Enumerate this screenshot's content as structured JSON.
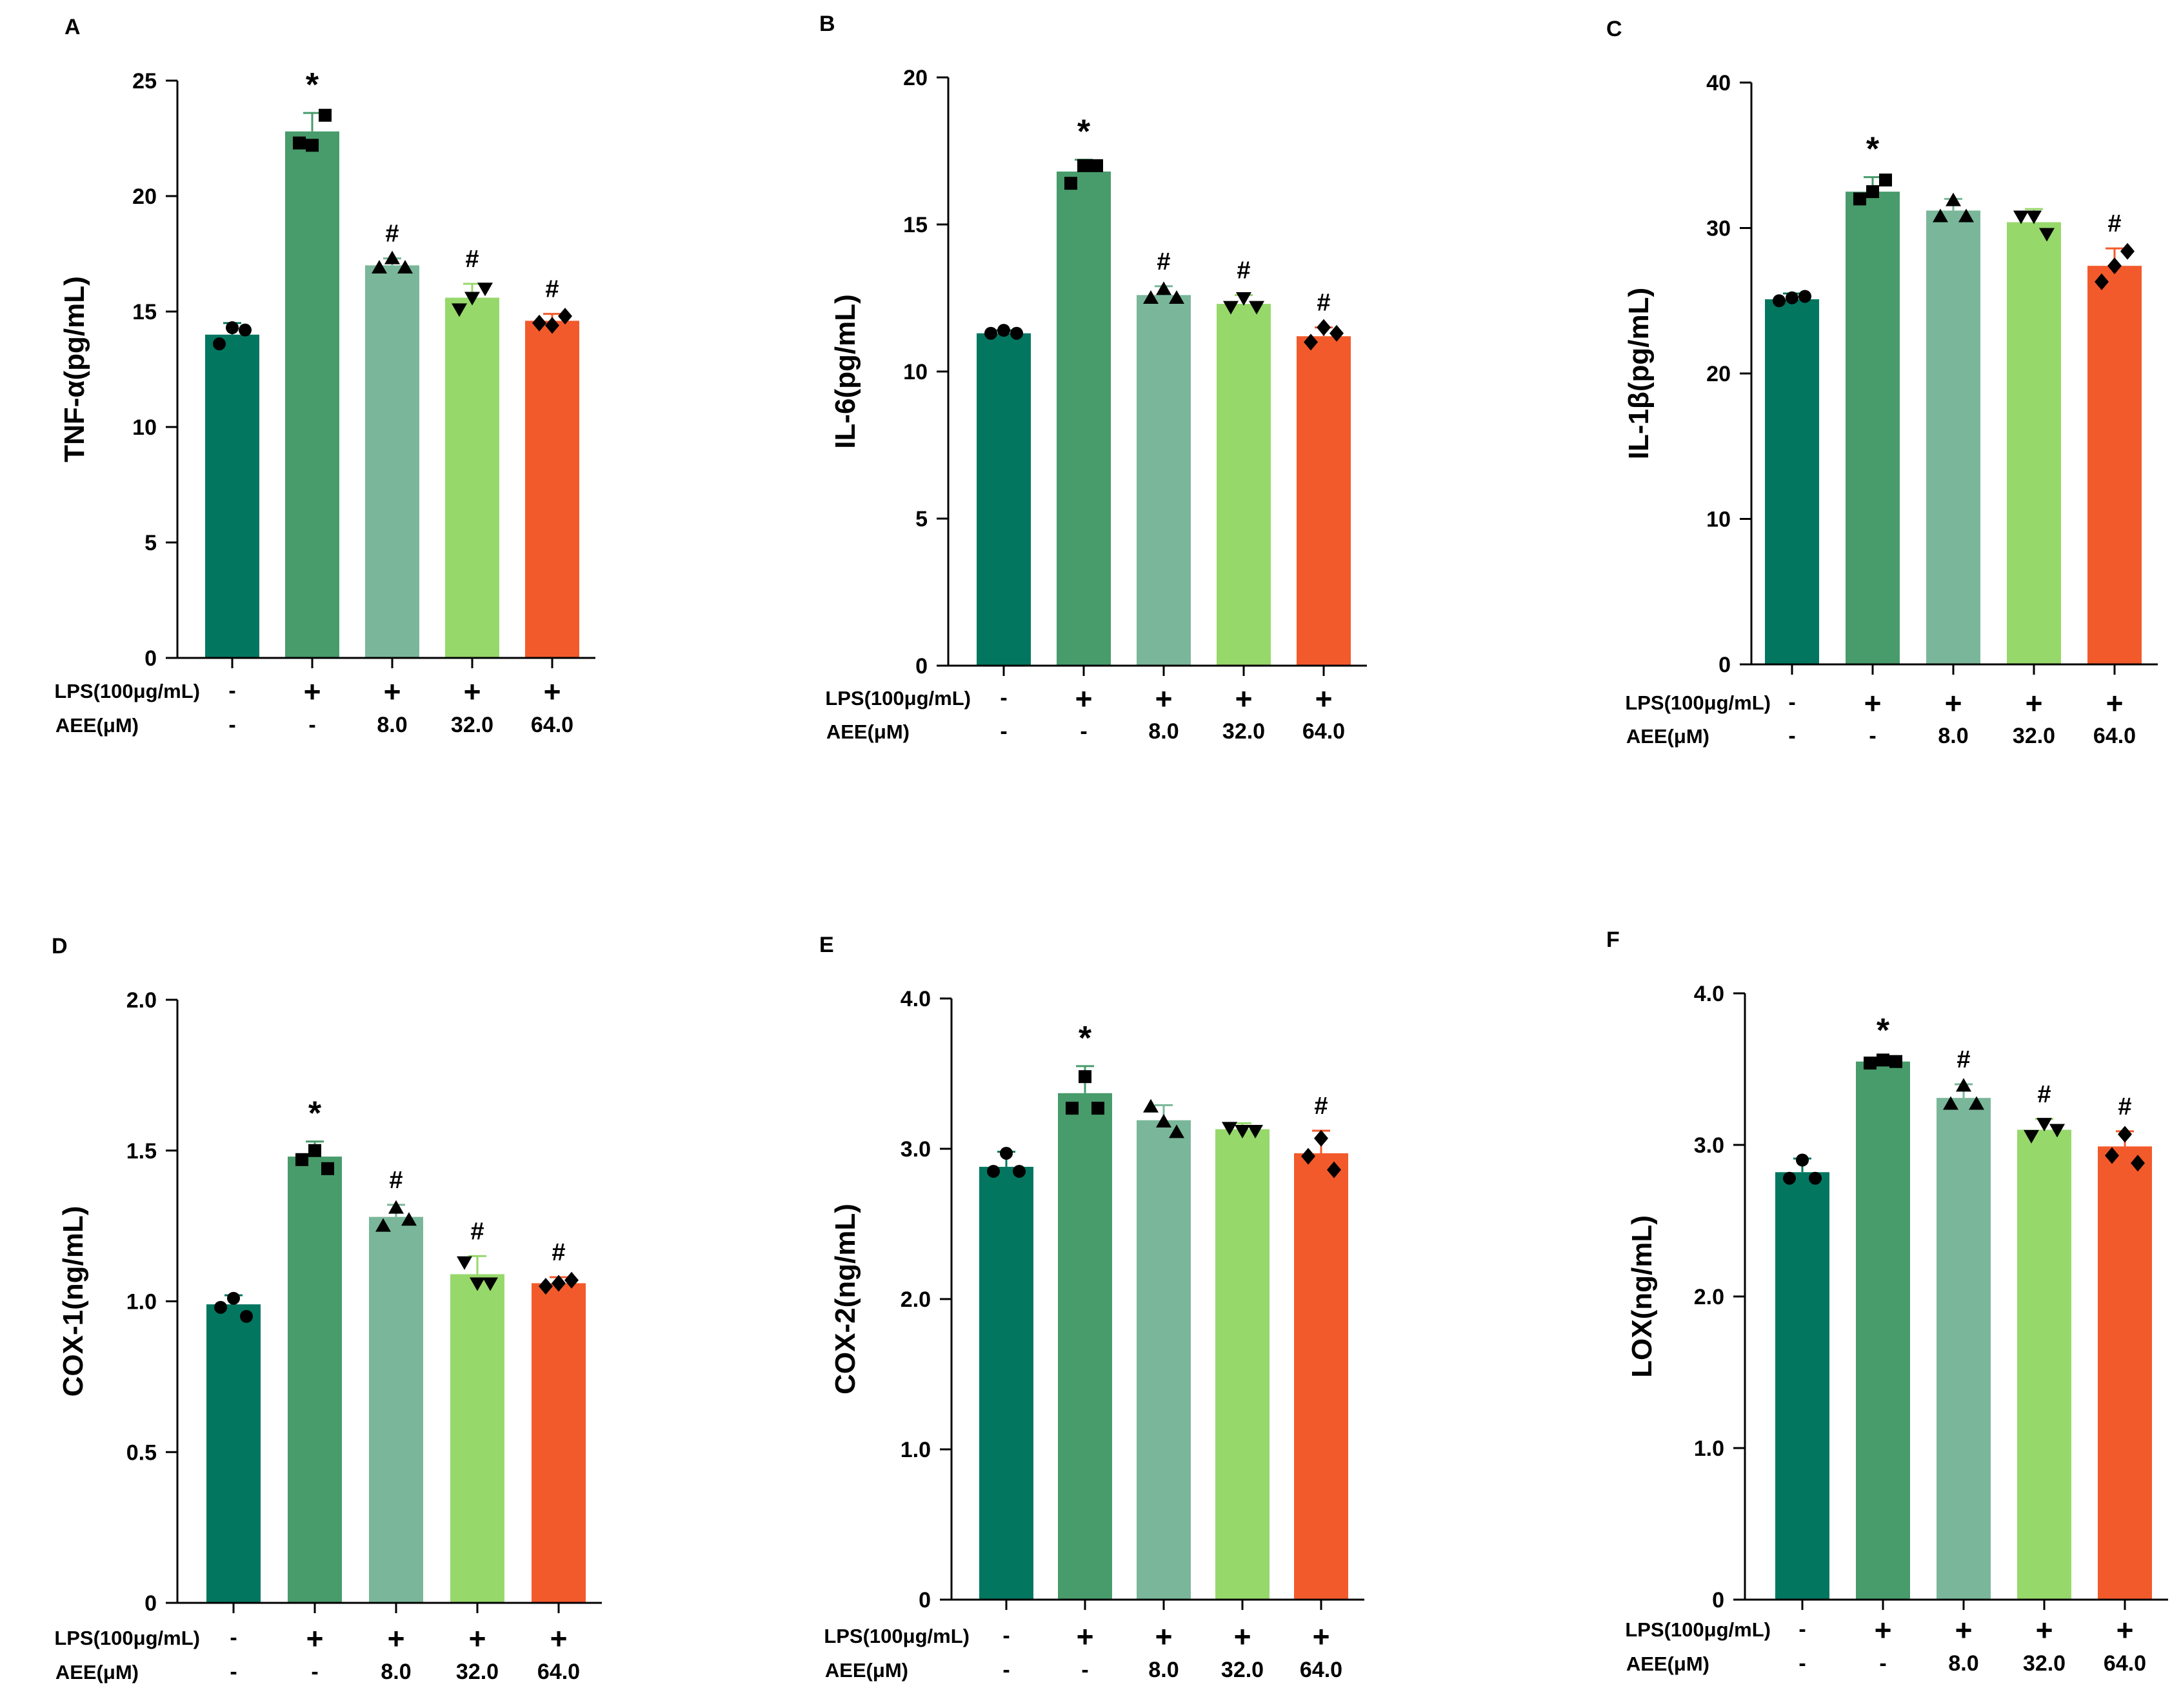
{
  "colors": [
    "#037660",
    "#489b6b",
    "#7ab79a",
    "#97d86b",
    "#f35a2b"
  ],
  "conditions": {
    "lps_label": "LPS(100μg/mL)",
    "aee_label": "AEE(μM)",
    "lps": [
      "-",
      "+",
      "+",
      "+",
      "+"
    ],
    "aee": [
      "-",
      "-",
      "8.0",
      "32.0",
      "64.0"
    ]
  },
  "chart_data": [
    {
      "panel": "A",
      "type": "bar",
      "ylabel": "TNF-α(pg/mL)",
      "ylim": [
        0,
        25
      ],
      "yticks": [
        0,
        5,
        10,
        15,
        20,
        25
      ],
      "yticklabels": [
        "0",
        "5",
        "10",
        "15",
        "20",
        "25"
      ],
      "values": [
        14.0,
        22.8,
        17.0,
        15.6,
        14.6
      ],
      "errors": [
        0.5,
        0.8,
        0.3,
        0.6,
        0.3
      ],
      "points": [
        [
          13.6,
          14.3,
          14.2
        ],
        [
          22.3,
          22.2,
          23.5
        ],
        [
          16.9,
          17.3,
          16.9
        ],
        [
          15.1,
          15.6,
          16.0
        ],
        [
          14.5,
          14.4,
          14.8
        ]
      ],
      "annotations": [
        "",
        "*",
        "#",
        "#",
        "#"
      ]
    },
    {
      "panel": "B",
      "type": "bar",
      "ylabel": "IL-6(pg/mL)",
      "ylim": [
        0,
        20
      ],
      "yticks": [
        0,
        5,
        10,
        15,
        20
      ],
      "yticklabels": [
        "0",
        "5",
        "10",
        "15",
        "20"
      ],
      "values": [
        11.3,
        16.8,
        12.6,
        12.3,
        11.2
      ],
      "errors": [
        0.1,
        0.4,
        0.3,
        0.3,
        0.3
      ],
      "points": [
        [
          11.3,
          11.4,
          11.3
        ],
        [
          16.4,
          17.0,
          17.0
        ],
        [
          12.5,
          12.8,
          12.5
        ],
        [
          12.2,
          12.5,
          12.2
        ],
        [
          11.0,
          11.5,
          11.3
        ]
      ],
      "annotations": [
        "",
        "*",
        "#",
        "#",
        "#"
      ]
    },
    {
      "panel": "C",
      "type": "bar",
      "ylabel": "IL-1β(pg/mL)",
      "ylim": [
        0,
        40
      ],
      "yticks": [
        0,
        10,
        20,
        30,
        40
      ],
      "yticklabels": [
        "0",
        "10",
        "20",
        "30",
        "40"
      ],
      "values": [
        25.1,
        32.5,
        31.2,
        30.4,
        27.4
      ],
      "errors": [
        0.4,
        1.0,
        0.8,
        0.9,
        1.2
      ],
      "points": [
        [
          25.0,
          25.2,
          25.3
        ],
        [
          32.0,
          32.5,
          33.3
        ],
        [
          30.8,
          31.9,
          30.8
        ],
        [
          30.8,
          30.8,
          29.6
        ],
        [
          26.3,
          27.4,
          28.4
        ]
      ],
      "annotations": [
        "",
        "*",
        "",
        "",
        "#"
      ]
    },
    {
      "panel": "D",
      "type": "bar",
      "ylabel": "COX-1(ng/mL)",
      "ylim": [
        0,
        2.0
      ],
      "yticks": [
        0,
        0.5,
        1.0,
        1.5,
        2.0
      ],
      "yticklabels": [
        "0",
        "0.5",
        "1.0",
        "1.5",
        "2.0"
      ],
      "values": [
        0.99,
        1.48,
        1.28,
        1.09,
        1.06
      ],
      "errors": [
        0.03,
        0.05,
        0.04,
        0.06,
        0.02
      ],
      "points": [
        [
          0.98,
          1.01,
          0.95
        ],
        [
          1.47,
          1.5,
          1.44
        ],
        [
          1.25,
          1.31,
          1.27
        ],
        [
          1.13,
          1.06,
          1.06
        ],
        [
          1.05,
          1.06,
          1.07
        ]
      ],
      "annotations": [
        "",
        "*",
        "#",
        "#",
        "#"
      ]
    },
    {
      "panel": "E",
      "type": "bar",
      "ylabel": "COX-2(ng/mL)",
      "ylim": [
        0,
        4.0
      ],
      "yticks": [
        0,
        1.0,
        2.0,
        3.0,
        4.0
      ],
      "yticklabels": [
        "0",
        "1.0",
        "2.0",
        "3.0",
        "4.0"
      ],
      "values": [
        2.88,
        3.37,
        3.19,
        3.13,
        2.97
      ],
      "errors": [
        0.1,
        0.18,
        0.1,
        0.04,
        0.15
      ],
      "points": [
        [
          2.85,
          2.97,
          2.85
        ],
        [
          3.27,
          3.48,
          3.27
        ],
        [
          3.28,
          3.18,
          3.11
        ],
        [
          3.14,
          3.12,
          3.12
        ],
        [
          2.95,
          3.07,
          2.86
        ]
      ],
      "annotations": [
        "",
        "*",
        "",
        "",
        "#"
      ]
    },
    {
      "panel": "F",
      "type": "bar",
      "ylabel": "LOX(ng/mL)",
      "ylim": [
        0,
        4.0
      ],
      "yticks": [
        0,
        1.0,
        2.0,
        3.0,
        4.0
      ],
      "yticklabels": [
        "0",
        "1.0",
        "2.0",
        "3.0",
        "4.0"
      ],
      "values": [
        2.82,
        3.55,
        3.31,
        3.1,
        2.99
      ],
      "errors": [
        0.09,
        0.02,
        0.09,
        0.07,
        0.1
      ],
      "points": [
        [
          2.78,
          2.9,
          2.78
        ],
        [
          3.54,
          3.56,
          3.55
        ],
        [
          3.27,
          3.39,
          3.27
        ],
        [
          3.06,
          3.14,
          3.1
        ],
        [
          2.93,
          3.07,
          2.88
        ]
      ],
      "annotations": [
        "",
        "*",
        "#",
        "#",
        "#"
      ]
    }
  ]
}
